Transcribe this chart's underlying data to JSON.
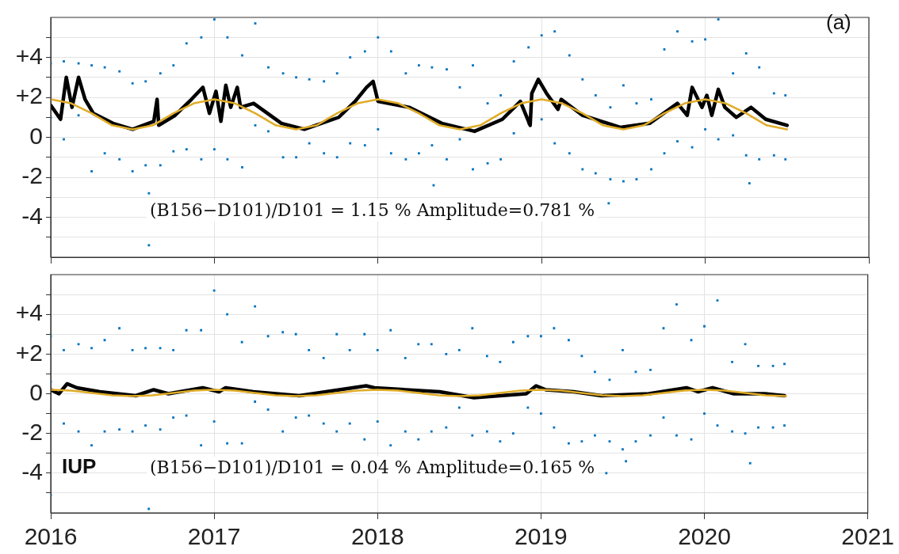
{
  "chart_data": [
    {
      "type": "scatter",
      "xlim": [
        2016,
        2021
      ],
      "xticks": [
        2016,
        2017,
        2018,
        2019,
        2020,
        2021
      ],
      "ylim": [
        -6,
        6
      ],
      "yticks": [
        {
          "value": -5,
          "label": null
        },
        -4,
        {
          "value": -3,
          "label": null
        },
        -2,
        {
          "value": -1,
          "label": null
        },
        0,
        {
          "value": 1,
          "label": null
        },
        {
          "value": 2,
          "label": "+2"
        },
        {
          "value": 3,
          "label": null
        },
        {
          "value": 4,
          "label": "+4"
        },
        {
          "value": 5,
          "label": null
        }
      ],
      "grid": true,
      "tick_labels": "y",
      "annotations": [
        "(a)",
        "(B156−D101)/D101 = 1.15 % Amplitude=0.781 %"
      ],
      "series": [
        {
          "marker": "square",
          "color": "#0072bd",
          "x": [
            2016.0,
            2016.0,
            2016.08,
            2016.08,
            2016.17,
            2016.17,
            2016.25,
            2016.25,
            2016.33,
            2016.33,
            2016.42,
            2016.42,
            2016.5,
            2016.5,
            2016.58,
            2016.58,
            2016.67,
            2016.67,
            2016.75,
            2016.75,
            2016.83,
            2016.83,
            2016.92,
            2016.92,
            2017.0,
            2017.0,
            2017.08,
            2017.08,
            2017.17,
            2017.17,
            2017.25,
            2017.25,
            2017.33,
            2017.33,
            2017.42,
            2017.42,
            2017.5,
            2017.5,
            2017.58,
            2017.58,
            2017.67,
            2017.67,
            2017.75,
            2017.75,
            2017.83,
            2017.83,
            2017.92,
            2017.92,
            2018.0,
            2018.0,
            2018.08,
            2018.08,
            2018.17,
            2018.17,
            2018.25,
            2018.25,
            2018.33,
            2018.33,
            2018.42,
            2018.42,
            2018.5,
            2018.5,
            2018.58,
            2018.58,
            2018.67,
            2018.67,
            2018.75,
            2018.75,
            2018.83,
            2018.83,
            2018.92,
            2018.92,
            2019.0,
            2019.0,
            2019.08,
            2019.08,
            2019.17,
            2019.17,
            2019.25,
            2019.25,
            2019.33,
            2019.33,
            2019.42,
            2019.42,
            2019.5,
            2019.5,
            2019.58,
            2019.58,
            2019.67,
            2019.67,
            2019.75,
            2019.75,
            2019.83,
            2019.83,
            2019.92,
            2019.92,
            2020.0,
            2020.0,
            2020.08,
            2020.08,
            2020.17,
            2020.17,
            2020.25,
            2020.25,
            2020.33,
            2020.33,
            2020.42,
            2020.42,
            2020.49,
            2020.49,
            2016.6,
            2016.6,
            2018.34,
            2019.41,
            2020.27
          ],
          "values": [
            3.7,
            1.0,
            3.8,
            -0.1,
            3.7,
            1.1,
            3.6,
            -1.7,
            3.5,
            -0.8,
            3.3,
            -1.1,
            2.7,
            -1.7,
            2.8,
            -1.4,
            3.2,
            -1.4,
            3.6,
            -0.7,
            4.7,
            -0.6,
            5.0,
            -1.1,
            5.9,
            -0.6,
            5.0,
            -1.1,
            4.1,
            -1.5,
            5.7,
            0.6,
            3.5,
            0.3,
            3.2,
            -1.0,
            3.0,
            -1.0,
            2.9,
            -0.3,
            2.8,
            -0.8,
            3.2,
            -1.0,
            4.0,
            -0.3,
            4.3,
            -0.4,
            5.0,
            0.4,
            4.3,
            -0.8,
            3.2,
            -1.1,
            3.6,
            -0.8,
            3.5,
            -0.4,
            3.4,
            -1.1,
            2.5,
            -0.1,
            3.6,
            -1.6,
            1.7,
            -1.3,
            2.1,
            -1.1,
            3.8,
            0.2,
            4.5,
            0.7,
            5.1,
            0.9,
            5.3,
            -0.3,
            4.1,
            -0.8,
            2.9,
            -1.6,
            2.1,
            -1.8,
            1.5,
            -2.1,
            2.6,
            -2.2,
            1.7,
            -2.1,
            1.9,
            -1.6,
            4.4,
            -0.8,
            5.3,
            -0.2,
            4.8,
            -0.5,
            4.9,
            0.4,
            5.9,
            -0.1,
            3.2,
            0.1,
            4.2,
            -0.9,
            3.5,
            -1.1,
            2.2,
            -0.9,
            2.1,
            -1.1,
            -5.4,
            -2.8,
            -2.4,
            -3.3,
            -2.3
          ]
        },
        {
          "type": "line",
          "color": "#000000",
          "x": [
            2016.0,
            2016.06,
            2016.095,
            2016.13,
            2016.17,
            2016.21,
            2016.26,
            2016.38,
            2016.5,
            2016.63,
            2016.65,
            2016.66,
            2016.76,
            2016.86,
            2016.93,
            2016.97,
            2017.01,
            2017.04,
            2017.07,
            2017.1,
            2017.14,
            2017.16,
            2017.24,
            2017.41,
            2017.55,
            2017.76,
            2017.86,
            2017.93,
            2017.97,
            2018.0,
            2018.19,
            2018.39,
            2018.59,
            2018.76,
            2018.87,
            2018.93,
            2018.94,
            2018.98,
            2019.03,
            2019.1,
            2019.12,
            2019.25,
            2019.48,
            2019.66,
            2019.83,
            2019.89,
            2019.92,
            2019.98,
            2020.01,
            2020.04,
            2020.08,
            2020.12,
            2020.19,
            2020.28,
            2020.37,
            2020.5
          ],
          "values": [
            1.6,
            0.9,
            3.0,
            1.5,
            3.0,
            1.9,
            1.2,
            0.7,
            0.4,
            0.8,
            1.9,
            0.6,
            1.1,
            1.9,
            2.5,
            1.2,
            2.3,
            0.8,
            2.6,
            1.5,
            2.5,
            1.5,
            1.7,
            0.7,
            0.4,
            1.0,
            1.8,
            2.5,
            2.8,
            1.8,
            1.5,
            0.7,
            0.3,
            0.9,
            1.8,
            0.6,
            2.2,
            2.9,
            2.2,
            1.4,
            1.9,
            1.1,
            0.5,
            0.7,
            1.7,
            1.1,
            2.5,
            1.5,
            2.1,
            1.1,
            2.4,
            1.5,
            1.0,
            1.5,
            0.9,
            0.6
          ]
        },
        {
          "type": "line",
          "color": "#e0ac28",
          "x": [
            2016.0,
            2016.125,
            2016.25,
            2016.375,
            2016.5,
            2016.625,
            2016.75,
            2016.875,
            2017.0,
            2017.125,
            2017.25,
            2017.375,
            2017.5,
            2017.625,
            2017.75,
            2017.875,
            2018.0,
            2018.125,
            2018.25,
            2018.375,
            2018.5,
            2018.625,
            2018.75,
            2018.875,
            2019.0,
            2019.125,
            2019.25,
            2019.375,
            2019.5,
            2019.625,
            2019.75,
            2019.875,
            2020.0,
            2020.125,
            2020.25,
            2020.375,
            2020.5
          ],
          "values": [
            1.9,
            1.7,
            1.2,
            0.6,
            0.4,
            0.6,
            1.2,
            1.7,
            1.9,
            1.7,
            1.2,
            0.6,
            0.4,
            0.6,
            1.2,
            1.7,
            1.9,
            1.7,
            1.2,
            0.6,
            0.4,
            0.6,
            1.2,
            1.7,
            1.9,
            1.7,
            1.2,
            0.6,
            0.4,
            0.6,
            1.2,
            1.7,
            1.9,
            1.7,
            1.2,
            0.6,
            0.4
          ]
        }
      ]
    },
    {
      "type": "scatter",
      "xlim": [
        2016,
        2021
      ],
      "xticks": [
        2016,
        2017,
        2018,
        2019,
        2020,
        2021
      ],
      "ylim": [
        -6,
        6
      ],
      "yticks": [
        {
          "value": -5,
          "label": null
        },
        -4,
        {
          "value": -3,
          "label": null
        },
        -2,
        {
          "value": -1,
          "label": null
        },
        0,
        {
          "value": 1,
          "label": null
        },
        {
          "value": 2,
          "label": "+2"
        },
        {
          "value": 3,
          "label": null
        },
        {
          "value": 4,
          "label": "+4"
        },
        {
          "value": 5,
          "label": null
        }
      ],
      "grid": true,
      "annotations": [
        "IUP",
        "(B156−D101)/D101 = 0.04 % Amplitude=0.165 %"
      ],
      "series": [
        {
          "marker": "square",
          "color": "#0072bd",
          "x": [
            2016.0,
            2016.0,
            2016.08,
            2016.08,
            2016.17,
            2016.17,
            2016.25,
            2016.25,
            2016.33,
            2016.33,
            2016.42,
            2016.42,
            2016.5,
            2016.5,
            2016.58,
            2016.58,
            2016.67,
            2016.67,
            2016.75,
            2016.75,
            2016.83,
            2016.83,
            2016.92,
            2016.92,
            2017.0,
            2017.0,
            2017.08,
            2017.08,
            2017.17,
            2017.17,
            2017.25,
            2017.25,
            2017.33,
            2017.33,
            2017.42,
            2017.42,
            2017.5,
            2017.5,
            2017.58,
            2017.58,
            2017.67,
            2017.67,
            2017.75,
            2017.75,
            2017.83,
            2017.83,
            2017.92,
            2017.92,
            2018.0,
            2018.0,
            2018.08,
            2018.08,
            2018.17,
            2018.17,
            2018.25,
            2018.25,
            2018.33,
            2018.33,
            2018.42,
            2018.42,
            2018.5,
            2018.5,
            2018.58,
            2018.58,
            2018.67,
            2018.67,
            2018.75,
            2018.75,
            2018.83,
            2018.83,
            2018.92,
            2018.92,
            2019.0,
            2019.0,
            2019.08,
            2019.08,
            2019.17,
            2019.17,
            2019.25,
            2019.25,
            2019.33,
            2019.33,
            2019.42,
            2019.42,
            2019.5,
            2019.5,
            2019.58,
            2019.58,
            2019.67,
            2019.67,
            2019.75,
            2019.75,
            2019.83,
            2019.83,
            2019.92,
            2019.92,
            2020.0,
            2020.0,
            2020.08,
            2020.08,
            2020.17,
            2020.17,
            2020.25,
            2020.25,
            2020.33,
            2020.33,
            2020.42,
            2020.42,
            2020.49,
            2020.49,
            2016.0,
            2016.6,
            2019.52,
            2020.28,
            2019.4
          ],
          "values": [
            2.9,
            0.6,
            2.2,
            -1.5,
            2.5,
            -1.9,
            2.3,
            -2.6,
            2.7,
            -1.9,
            3.3,
            -1.8,
            2.2,
            -1.9,
            2.3,
            -1.6,
            2.3,
            -1.8,
            2.2,
            -1.2,
            3.2,
            -1.1,
            3.2,
            -2.6,
            5.2,
            -1.4,
            4.0,
            -2.5,
            2.6,
            -2.5,
            4.4,
            -0.4,
            2.9,
            -0.8,
            3.1,
            -1.9,
            3.0,
            -1.2,
            2.2,
            -1.1,
            1.8,
            -1.5,
            3.0,
            -1.9,
            2.2,
            -1.5,
            3.0,
            -2.3,
            2.2,
            -1.4,
            3.2,
            -2.6,
            1.8,
            -1.9,
            2.5,
            -2.3,
            2.5,
            -1.9,
            2.0,
            -1.7,
            2.2,
            -0.7,
            3.3,
            -2.1,
            1.9,
            -1.9,
            1.6,
            -2.4,
            2.6,
            -2.0,
            2.9,
            -0.7,
            2.9,
            -1.0,
            3.3,
            -1.7,
            2.7,
            -2.5,
            1.9,
            -2.4,
            1.1,
            -2.1,
            0.7,
            -2.4,
            2.2,
            -2.8,
            1.1,
            -2.4,
            1.2,
            -2.1,
            3.3,
            -1.2,
            4.5,
            -2.1,
            2.7,
            -2.3,
            3.4,
            -1.0,
            4.7,
            -1.6,
            1.6,
            -1.9,
            2.5,
            -2.0,
            1.4,
            -1.7,
            1.4,
            -1.7,
            1.5,
            -1.6,
            -5.1,
            -5.8,
            -3.4,
            -3.5,
            -4.0
          ]
        },
        {
          "type": "line",
          "color": "#000000",
          "x": [
            2016.0,
            2016.05,
            2016.1,
            2016.16,
            2016.3,
            2016.52,
            2016.63,
            2016.72,
            2016.93,
            2017.03,
            2017.07,
            2017.24,
            2017.52,
            2017.93,
            2017.98,
            2018.38,
            2018.59,
            2018.91,
            2018.97,
            2019.03,
            2019.2,
            2019.37,
            2019.66,
            2019.89,
            2019.96,
            2020.05,
            2020.18,
            2020.37,
            2020.49
          ],
          "values": [
            0.2,
            0.0,
            0.5,
            0.3,
            0.1,
            -0.1,
            0.2,
            0.0,
            0.3,
            0.1,
            0.3,
            0.1,
            -0.1,
            0.4,
            0.3,
            0.1,
            -0.2,
            0.0,
            0.4,
            0.2,
            0.1,
            -0.1,
            0.0,
            0.3,
            0.1,
            0.3,
            0.0,
            0.0,
            -0.1
          ]
        },
        {
          "type": "line",
          "color": "#e0ac28",
          "x": [
            2016.0,
            2016.125,
            2016.25,
            2016.375,
            2016.5,
            2016.625,
            2016.75,
            2016.875,
            2017.0,
            2017.125,
            2017.25,
            2017.375,
            2017.5,
            2017.625,
            2017.75,
            2017.875,
            2018.0,
            2018.125,
            2018.25,
            2018.375,
            2018.5,
            2018.625,
            2018.75,
            2018.875,
            2019.0,
            2019.125,
            2019.25,
            2019.375,
            2019.5,
            2019.625,
            2019.75,
            2019.875,
            2020.0,
            2020.125,
            2020.25,
            2020.375,
            2020.5
          ],
          "values": [
            0.2,
            0.16,
            0.04,
            -0.08,
            -0.12,
            -0.08,
            0.04,
            0.16,
            0.2,
            0.16,
            0.04,
            -0.08,
            -0.12,
            -0.08,
            0.04,
            0.16,
            0.2,
            0.16,
            0.04,
            -0.08,
            -0.12,
            -0.08,
            0.04,
            0.16,
            0.2,
            0.16,
            0.04,
            -0.08,
            -0.12,
            -0.08,
            0.04,
            0.16,
            0.2,
            0.16,
            0.04,
            -0.08,
            -0.12
          ]
        }
      ]
    }
  ]
}
